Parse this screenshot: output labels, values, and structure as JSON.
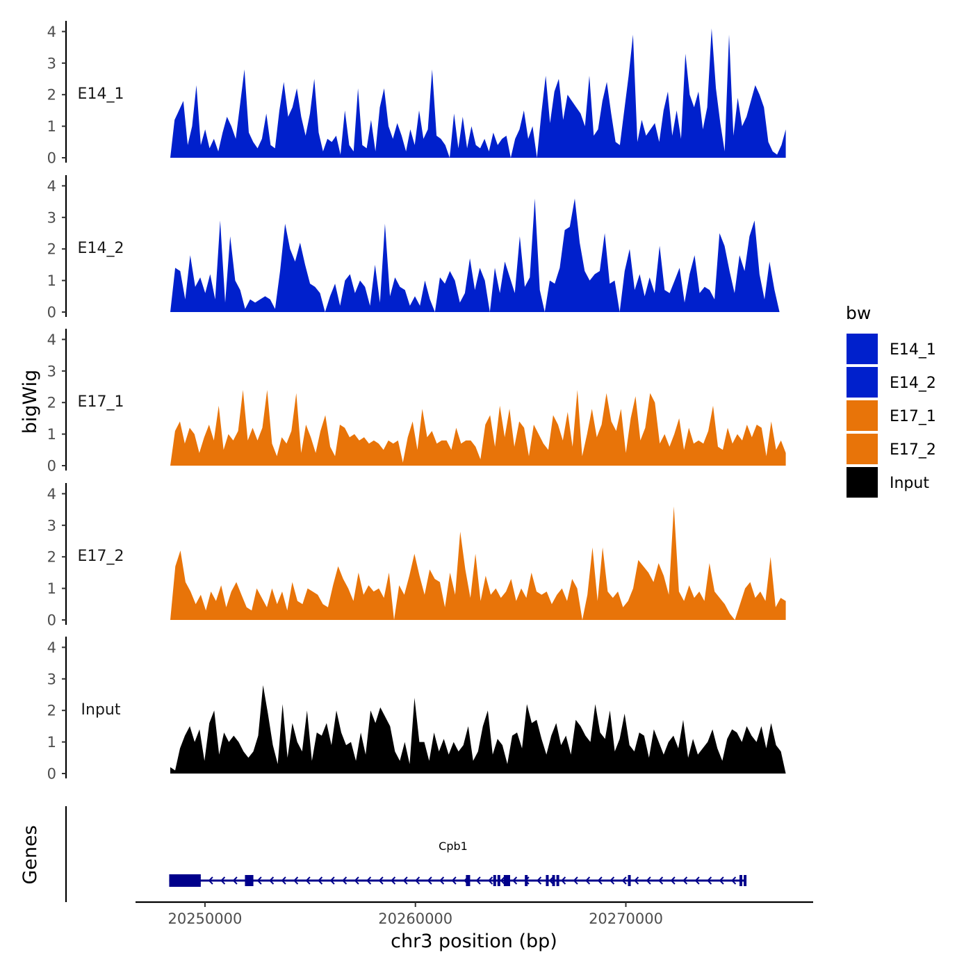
{
  "chart_data": {
    "type": "area",
    "title": "",
    "ylabel": "bigWig",
    "xlabel": "chr3 position (bp)",
    "xlim": [
      20246700,
      20278900
    ],
    "ylim": [
      0,
      4.2
    ],
    "yticks": [
      0,
      1,
      2,
      3,
      4
    ],
    "xticks": [
      20250000,
      20260000,
      20270000
    ],
    "xtick_labels": [
      "20250000",
      "20260000",
      "20270000"
    ],
    "legend": {
      "title": "bw",
      "position": "right",
      "entries": [
        {
          "label": "E14_1",
          "color": "#0020CC"
        },
        {
          "label": "E14_2",
          "color": "#0020CC"
        },
        {
          "label": "E17_1",
          "color": "#E87409"
        },
        {
          "label": "E17_2",
          "color": "#E87409"
        },
        {
          "label": "Input",
          "color": "#000000"
        }
      ]
    },
    "series": [
      {
        "name": "E14_1",
        "color": "#0020CC",
        "x_start": 20248350,
        "x_end": 20277600,
        "values": [
          0,
          1.2,
          1.5,
          1.8,
          0.4,
          1,
          2.3,
          0.4,
          0.9,
          0.3,
          0.6,
          0.2,
          0.8,
          1.3,
          1.0,
          0.6,
          1.7,
          2.8,
          0.8,
          0.5,
          0.3,
          0.6,
          1.4,
          0.4,
          0.3,
          1.5,
          2.4,
          1.3,
          1.6,
          2.2,
          1.3,
          0.7,
          1.4,
          2.5,
          0.8,
          0.2,
          0.6,
          0.5,
          0.7,
          0.1,
          1.5,
          0.4,
          0.2,
          2.2,
          0.4,
          0.3,
          1.2,
          0.2,
          1.6,
          2.2,
          1.0,
          0.6,
          1.1,
          0.7,
          0.2,
          0.9,
          0.4,
          1.5,
          0.6,
          0.9,
          2.8,
          0.7,
          0.6,
          0.4,
          0,
          1.4,
          0.3,
          1.3,
          0.3,
          1.0,
          0.4,
          0.3,
          0.6,
          0.2,
          0.8,
          0.4,
          0.6,
          0.7,
          0,
          0.6,
          0.9,
          1.5,
          0.6,
          1.0,
          0,
          1.4,
          2.6,
          1.1,
          2.1,
          2.5,
          1.2,
          2.0,
          1.8,
          1.6,
          1.4,
          1.0,
          2.6,
          0.7,
          0.9,
          1.8,
          2.4,
          1.4,
          0.5,
          0.4,
          1.5,
          2.6,
          3.9,
          0.5,
          1.2,
          0.7,
          0.9,
          1.1,
          0.5,
          1.5,
          2.1,
          0.7,
          1.5,
          0.6,
          3.3,
          2.0,
          1.6,
          2.1,
          0.9,
          1.6,
          4.1,
          2.2,
          1.1,
          0.2,
          3.9,
          0.7,
          1.9,
          1.0,
          1.3,
          1.8,
          2.3,
          2.0,
          1.6,
          0.5,
          0.2,
          0.1,
          0.4,
          0.9
        ]
      },
      {
        "name": "E14_2",
        "color": "#0020CC",
        "x_start": 20248350,
        "x_end": 20277300,
        "values": [
          0,
          1.4,
          1.3,
          0.4,
          1.8,
          0.8,
          1.1,
          0.6,
          1.2,
          0.4,
          2.9,
          0.3,
          2.4,
          1.0,
          0.7,
          0.1,
          0.4,
          0.3,
          0.4,
          0.5,
          0.4,
          0.1,
          1.3,
          2.8,
          2.0,
          1.6,
          2.2,
          1.5,
          0.9,
          0.8,
          0.6,
          0,
          0.5,
          0.9,
          0.2,
          1.0,
          1.2,
          0.6,
          1.0,
          0.8,
          0.2,
          1.5,
          0.3,
          2.8,
          0.5,
          1.1,
          0.8,
          0.7,
          0.2,
          0.5,
          0.2,
          1.0,
          0.4,
          0,
          1.1,
          0.9,
          1.3,
          1.0,
          0.3,
          0.6,
          1.7,
          0.7,
          1.4,
          1.0,
          0,
          1.4,
          0.6,
          1.6,
          1.1,
          0.6,
          2.4,
          0.8,
          1.1,
          3.6,
          0.7,
          0,
          1.0,
          0.9,
          1.4,
          2.6,
          2.7,
          3.6,
          2.2,
          1.3,
          1.0,
          1.2,
          1.3,
          2.5,
          0.9,
          1.0,
          0,
          1.3,
          2.0,
          0.7,
          1.2,
          0.5,
          1.1,
          0.6,
          2.1,
          0.7,
          0.6,
          1.0,
          1.4,
          0.3,
          1.2,
          1.8,
          0.6,
          0.8,
          0.7,
          0.4,
          2.5,
          2.1,
          1.3,
          0.6,
          1.8,
          1.3,
          2.4,
          2.9,
          1.2,
          0.4,
          1.6,
          0.7,
          0
        ]
      },
      {
        "name": "E17_1",
        "color": "#E87409",
        "x_start": 20248350,
        "x_end": 20277600,
        "values": [
          0,
          1.1,
          1.4,
          0.7,
          1.2,
          1.0,
          0.4,
          0.9,
          1.3,
          0.8,
          1.9,
          0.5,
          1.0,
          0.8,
          1.1,
          2.4,
          0.8,
          1.2,
          0.8,
          1.2,
          2.4,
          0.7,
          0.3,
          0.9,
          0.7,
          1.1,
          2.3,
          0.4,
          1.3,
          0.9,
          0.4,
          1.1,
          1.6,
          0.6,
          0.3,
          1.3,
          1.2,
          0.9,
          1.0,
          0.8,
          0.9,
          0.7,
          0.8,
          0.7,
          0.5,
          0.8,
          0.7,
          0.8,
          0.1,
          0.9,
          1.4,
          0.5,
          1.8,
          0.9,
          1.1,
          0.7,
          0.8,
          0.8,
          0.5,
          1.2,
          0.7,
          0.8,
          0.8,
          0.6,
          0.2,
          1.3,
          1.6,
          0.6,
          1.9,
          0.9,
          1.8,
          0.6,
          1.4,
          1.2,
          0.3,
          1.3,
          1.0,
          0.7,
          0.5,
          1.6,
          1.3,
          0.8,
          1.7,
          0.6,
          2.4,
          0.3,
          1.0,
          1.8,
          0.9,
          1.3,
          2.3,
          1.4,
          1.1,
          1.8,
          0.4,
          1.5,
          2.2,
          0.8,
          1.2,
          2.3,
          2.0,
          0.7,
          1.0,
          0.6,
          1.0,
          1.5,
          0.5,
          1.2,
          0.7,
          0.8,
          0.7,
          1.1,
          1.9,
          0.6,
          0.5,
          1.2,
          0.7,
          1.0,
          0.8,
          1.3,
          0.9,
          1.3,
          1.2,
          0.3,
          1.4,
          0.5,
          0.8,
          0.4
        ]
      },
      {
        "name": "E17_2",
        "color": "#E87409",
        "x_start": 20248350,
        "x_end": 20277600,
        "values": [
          0,
          1.7,
          2.2,
          1.2,
          0.9,
          0.5,
          0.8,
          0.3,
          0.9,
          0.6,
          1.1,
          0.4,
          0.9,
          1.2,
          0.8,
          0.4,
          0.3,
          1.0,
          0.7,
          0.4,
          1.0,
          0.5,
          0.9,
          0.3,
          1.2,
          0.6,
          0.5,
          1.0,
          0.9,
          0.8,
          0.5,
          0.4,
          1.1,
          1.7,
          1.3,
          1.0,
          0.6,
          1.5,
          0.8,
          1.1,
          0.9,
          1.0,
          0.7,
          1.5,
          0,
          1.1,
          0.8,
          1.4,
          2.1,
          1.4,
          0.8,
          1.6,
          1.3,
          1.2,
          0.4,
          1.5,
          0.8,
          2.8,
          1.6,
          0.7,
          2.1,
          0.6,
          1.4,
          0.8,
          1.0,
          0.7,
          0.9,
          1.3,
          0.6,
          1.0,
          0.7,
          1.5,
          0.9,
          0.8,
          0.9,
          0.5,
          0.8,
          1.0,
          0.6,
          1.3,
          1.0,
          0,
          0.8,
          2.3,
          0.6,
          2.3,
          0.9,
          0.7,
          0.9,
          0.4,
          0.6,
          1.0,
          1.9,
          1.7,
          1.5,
          1.2,
          1.8,
          1.4,
          0.8,
          3.6,
          0.9,
          0.6,
          1.1,
          0.7,
          0.9,
          0.6,
          1.8,
          0.9,
          0.7,
          0.5,
          0.2,
          0,
          0.5,
          1.0,
          1.2,
          0.7,
          0.9,
          0.6,
          2.0,
          0.4,
          0.7,
          0.6
        ]
      },
      {
        "name": "Input",
        "color": "#000000",
        "x_start": 20248350,
        "x_end": 20277600,
        "values": [
          0.2,
          0.1,
          0.8,
          1.2,
          1.5,
          1.0,
          1.4,
          0.4,
          1.6,
          2.0,
          0.6,
          1.3,
          1.0,
          1.2,
          1.0,
          0.7,
          0.5,
          0.7,
          1.2,
          2.8,
          1.9,
          0.9,
          0.3,
          2.2,
          0.5,
          1.6,
          1.0,
          0.7,
          2.0,
          0.4,
          1.3,
          1.2,
          1.6,
          0.9,
          2.0,
          1.3,
          0.9,
          1.0,
          0.4,
          1.3,
          0.6,
          2.0,
          1.6,
          2.1,
          1.8,
          1.5,
          0.7,
          0.4,
          1.0,
          0.3,
          2.4,
          1.0,
          1.0,
          0.4,
          1.3,
          0.7,
          1.1,
          0.6,
          1.0,
          0.7,
          0.9,
          1.5,
          0.4,
          0.7,
          1.5,
          2.0,
          0.6,
          1.1,
          0.9,
          0.3,
          1.2,
          1.3,
          0.8,
          2.2,
          1.6,
          1.7,
          1.1,
          0.6,
          1.2,
          1.6,
          0.9,
          1.2,
          0.6,
          1.7,
          1.5,
          1.2,
          1.0,
          2.2,
          1.3,
          1.1,
          2.0,
          0.7,
          1.1,
          1.9,
          0.9,
          0.7,
          1.3,
          1.2,
          0.5,
          1.4,
          1.0,
          0.6,
          1.0,
          1.2,
          0.8,
          1.7,
          0.5,
          1.1,
          0.6,
          0.8,
          1.0,
          1.4,
          0.8,
          0.4,
          1.1,
          1.4,
          1.3,
          1.0,
          1.5,
          1.2,
          1.0,
          1.5,
          0.8,
          1.6,
          0.9,
          0.7,
          0
        ]
      }
    ],
    "genes_track": {
      "label": "Genes",
      "color": "#00008B",
      "genes": [
        {
          "name": "Cpb1",
          "start": 20248300,
          "end": 20275700,
          "strand": "-",
          "exons": [
            [
              20248300,
              20249800
            ],
            [
              20251900,
              20252300
            ],
            [
              20262400,
              20262600
            ],
            [
              20263700,
              20263800
            ],
            [
              20263900,
              20264000
            ],
            [
              20264200,
              20264500
            ],
            [
              20265200,
              20265300
            ],
            [
              20266200,
              20266300
            ],
            [
              20266500,
              20266600
            ],
            [
              20266700,
              20266800
            ],
            [
              20270100,
              20270200
            ],
            [
              20275400,
              20275500
            ],
            [
              20275600,
              20275700
            ]
          ]
        }
      ]
    }
  }
}
